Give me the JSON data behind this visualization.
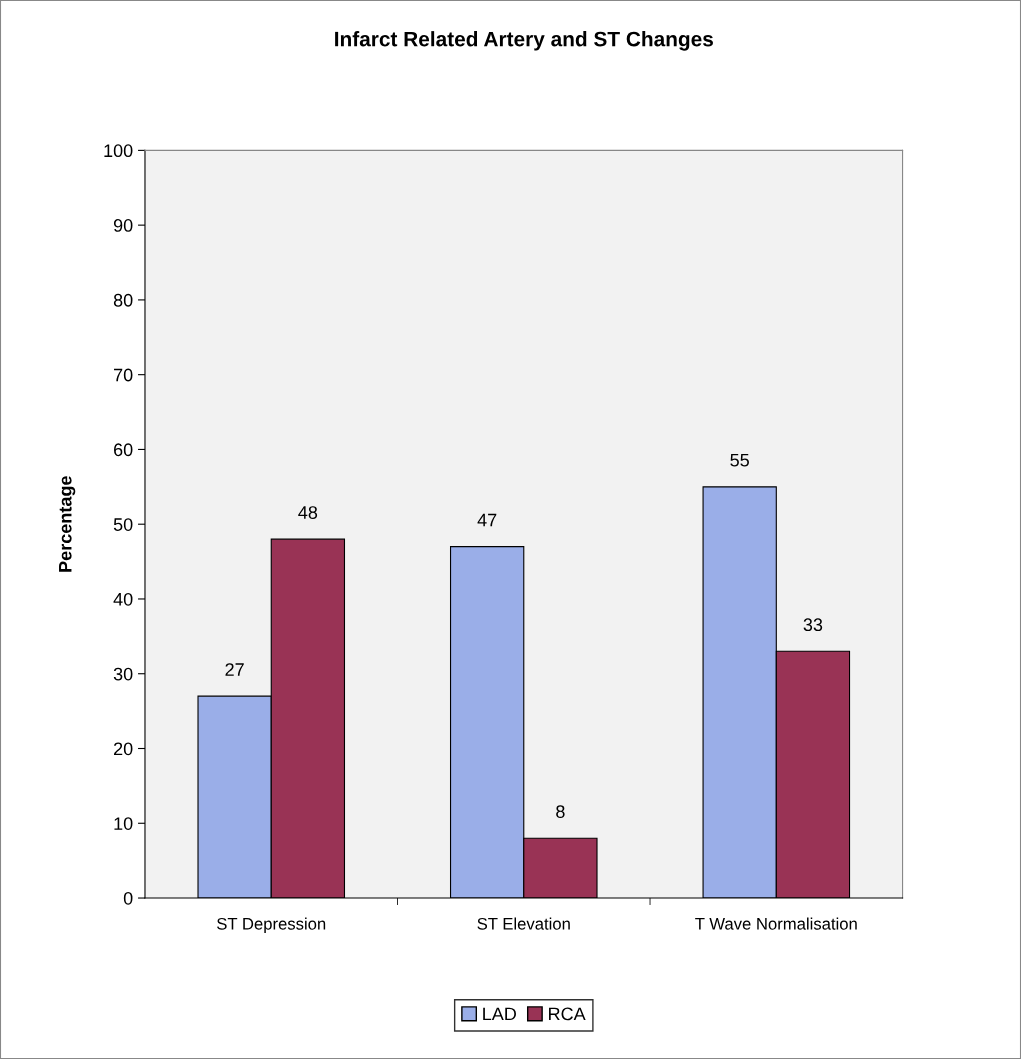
{
  "chart_data": {
    "type": "bar",
    "title": "Infarct Related Artery and ST Changes",
    "ylabel": "Percentage",
    "categories": [
      "ST Depression",
      "ST Elevation",
      "T Wave Normalisation"
    ],
    "series": [
      {
        "name": "LAD",
        "color": "#9aaee8",
        "values": [
          27,
          47,
          55
        ]
      },
      {
        "name": "RCA",
        "color": "#993355",
        "values": [
          48,
          8,
          33
        ]
      }
    ],
    "ylim": [
      0,
      100
    ],
    "yticks": [
      0,
      10,
      20,
      30,
      40,
      50,
      60,
      70,
      80,
      90,
      100
    ],
    "grid": false,
    "legend": "bottom",
    "data_labels": true
  }
}
